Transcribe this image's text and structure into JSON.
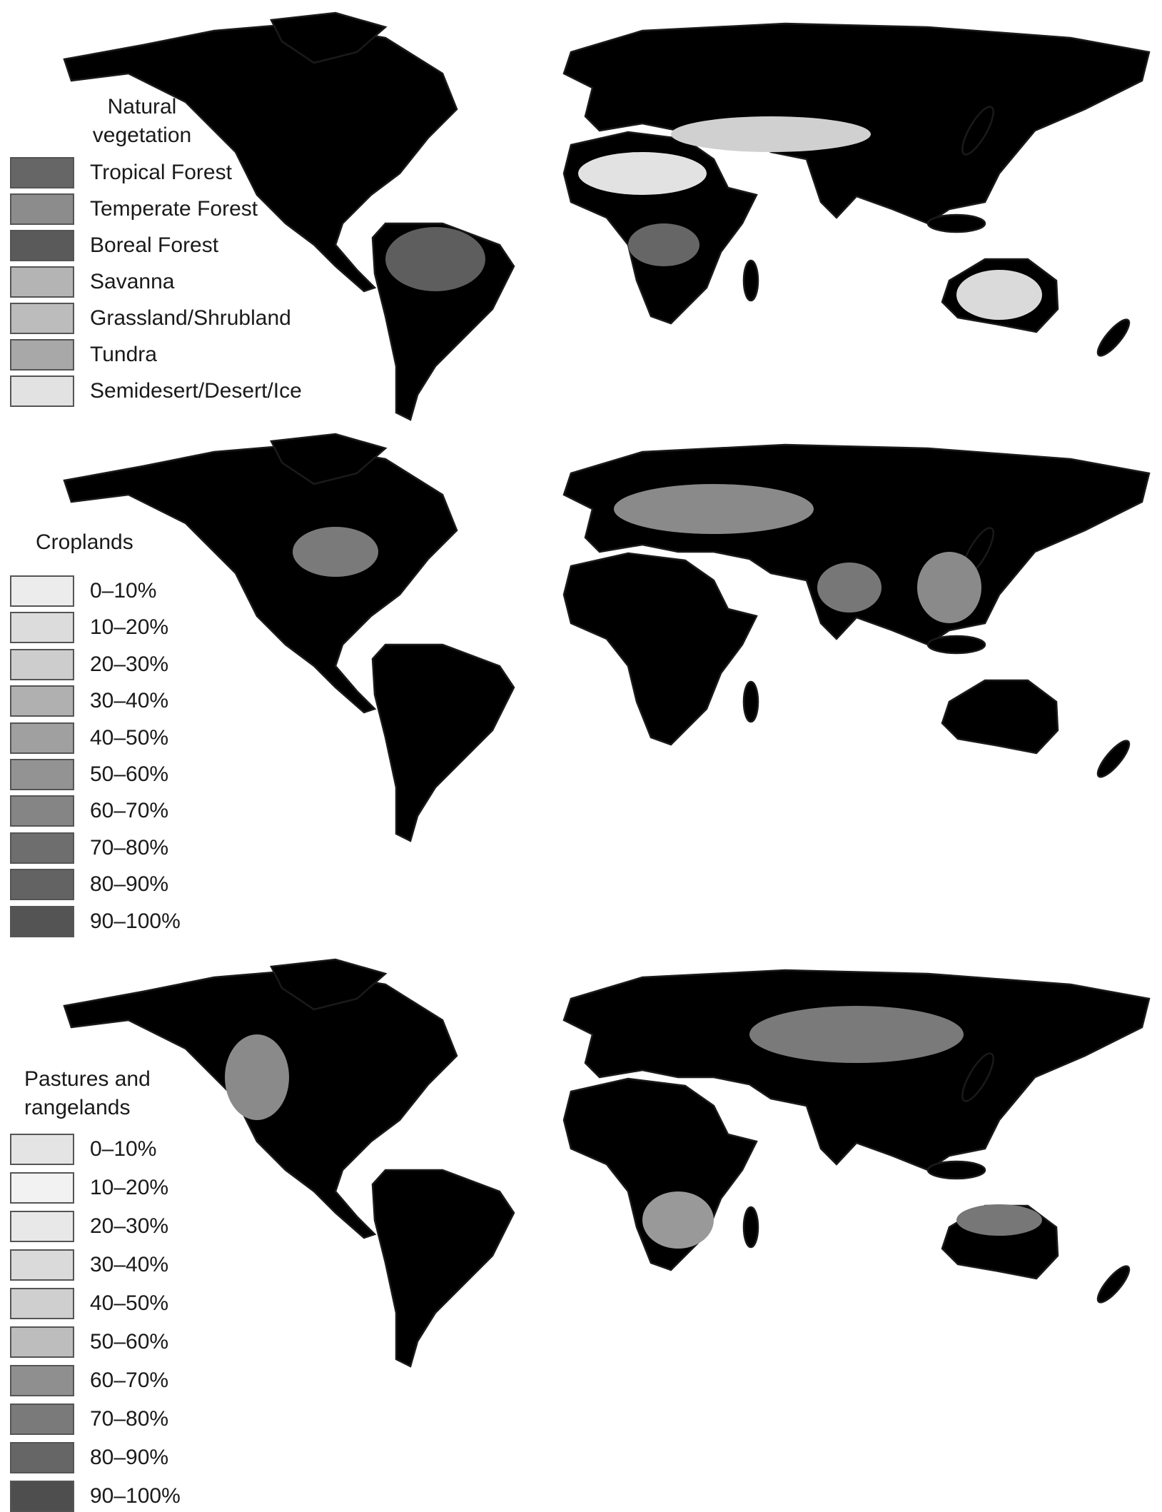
{
  "panels": [
    {
      "legend": {
        "title": "Natural vegetation",
        "items": [
          {
            "label": "Tropical Forest",
            "color": "#666666"
          },
          {
            "label": "Temperate Forest",
            "color": "#8c8c8c"
          },
          {
            "label": "Boreal Forest",
            "color": "#5a5a5a"
          },
          {
            "label": "Savanna",
            "color": "#b4b4b4"
          },
          {
            "label": "Grassland/Shrubland",
            "color": "#bcbcbc"
          },
          {
            "label": "Tundra",
            "color": "#a8a8a8"
          },
          {
            "label": "Semidesert/Desert/Ice",
            "color": "#e2e2e2"
          }
        ]
      }
    },
    {
      "legend": {
        "title": "Croplands",
        "items": [
          {
            "label": "0–10%",
            "color": "#ececec"
          },
          {
            "label": "10–20%",
            "color": "#dcdcdc"
          },
          {
            "label": "20–30%",
            "color": "#cdcdcd"
          },
          {
            "label": "30–40%",
            "color": "#b0b0b0"
          },
          {
            "label": "40–50%",
            "color": "#a0a0a0"
          },
          {
            "label": "50–60%",
            "color": "#939393"
          },
          {
            "label": "60–70%",
            "color": "#858585"
          },
          {
            "label": "70–80%",
            "color": "#6e6e6e"
          },
          {
            "label": "80–90%",
            "color": "#636363"
          },
          {
            "label": "90–100%",
            "color": "#545454"
          }
        ]
      }
    },
    {
      "legend": {
        "title": "Pastures and rangelands",
        "items": [
          {
            "label": "0–10%",
            "color": "#e4e4e4"
          },
          {
            "label": "10–20%",
            "color": "#f2f2f2"
          },
          {
            "label": "20–30%",
            "color": "#e8e8e8"
          },
          {
            "label": "30–40%",
            "color": "#dadada"
          },
          {
            "label": "40–50%",
            "color": "#cfcfcf"
          },
          {
            "label": "50–60%",
            "color": "#bdbdbd"
          },
          {
            "label": "60–70%",
            "color": "#8f8f8f"
          },
          {
            "label": "70–80%",
            "color": "#7a7a7a"
          },
          {
            "label": "80–90%",
            "color": "#666666"
          },
          {
            "label": "90–100%",
            "color": "#4e4e4e"
          }
        ]
      }
    }
  ]
}
